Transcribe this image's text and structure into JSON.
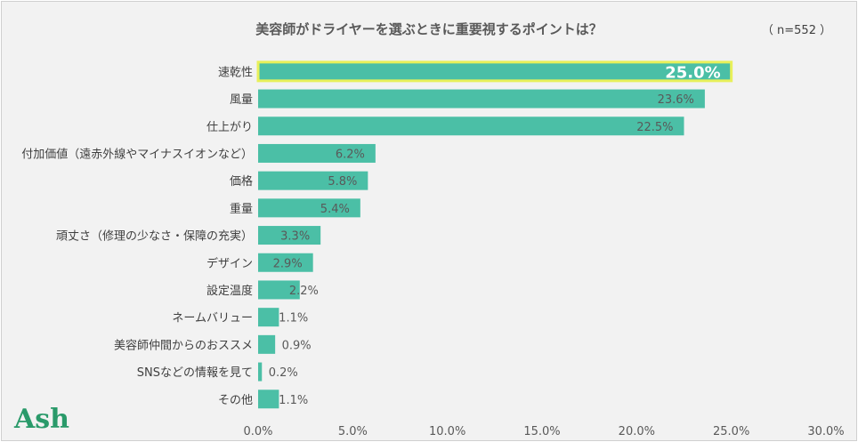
{
  "chart_data": {
    "type": "bar",
    "orientation": "horizontal",
    "title": "美容師がドライヤーを選ぶときに重要視するポイントは？",
    "sample_size": "（ n=552 ）",
    "categories": [
      "速乾性",
      "風量",
      "仕上がり",
      "付加価値（遠赤外線やマイナスイオンなど）",
      "価格",
      "重量",
      "頑丈さ（修理の少なさ・保障の充実）",
      "デザイン",
      "設定温度",
      "ネームバリュー",
      "美容師仲間からのおススメ",
      "SNSなどの情報を見て",
      "その他"
    ],
    "values": [
      25.0,
      23.6,
      22.5,
      6.2,
      5.8,
      5.4,
      3.3,
      2.9,
      2.2,
      1.1,
      0.9,
      0.2,
      1.1
    ],
    "value_labels": [
      "25.0%",
      "23.6%",
      "22.5%",
      "6.2%",
      "5.8%",
      "5.4%",
      "3.3%",
      "2.9%",
      "2.2%",
      "1.1%",
      "0.9%",
      "0.2%",
      "1.1%"
    ],
    "highlight_index": 0,
    "xlim": [
      0,
      30
    ],
    "x_ticks": [
      0,
      5,
      10,
      15,
      20,
      25,
      30
    ],
    "x_tick_labels": [
      "0.0%",
      "5.0%",
      "10.0%",
      "15.0%",
      "20.0%",
      "25.0%",
      "30.0%"
    ],
    "grid": false,
    "colors": {
      "bar": "#4bbfa6",
      "highlight_border": "#e8f05a",
      "background": "#f2f2f2"
    }
  },
  "brand": {
    "logo_text": "Ash"
  }
}
